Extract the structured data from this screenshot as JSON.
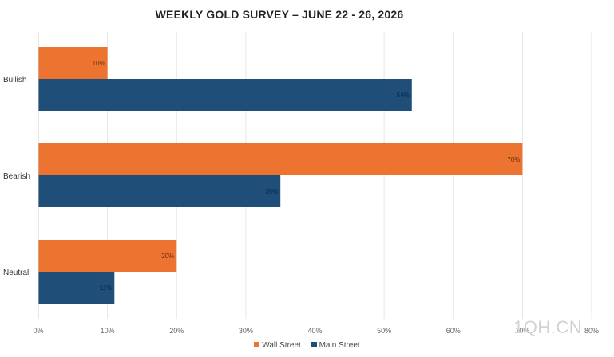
{
  "chart_data": {
    "type": "bar",
    "orientation": "horizontal",
    "title": "WEEKLY GOLD SURVEY – JUNE 22 - 26, 2026",
    "categories": [
      "Bullish",
      "Bearish",
      "Neutral"
    ],
    "series": [
      {
        "name": "Wall Street",
        "color": "#ed7331",
        "values": [
          10,
          70,
          20
        ],
        "labels": [
          "10%",
          "70%",
          "20%"
        ]
      },
      {
        "name": "Main Street",
        "color": "#1f4e79",
        "values": [
          54,
          35,
          11
        ],
        "labels": [
          "54%",
          "35%",
          "11%"
        ]
      }
    ],
    "xlim": [
      0,
      80
    ],
    "xticks": [
      "0%",
      "10%",
      "20%",
      "30%",
      "40%",
      "50%",
      "60%",
      "70%",
      "80%"
    ],
    "grid": true,
    "legend_position": "bottom"
  },
  "watermark": "1QH.CN"
}
